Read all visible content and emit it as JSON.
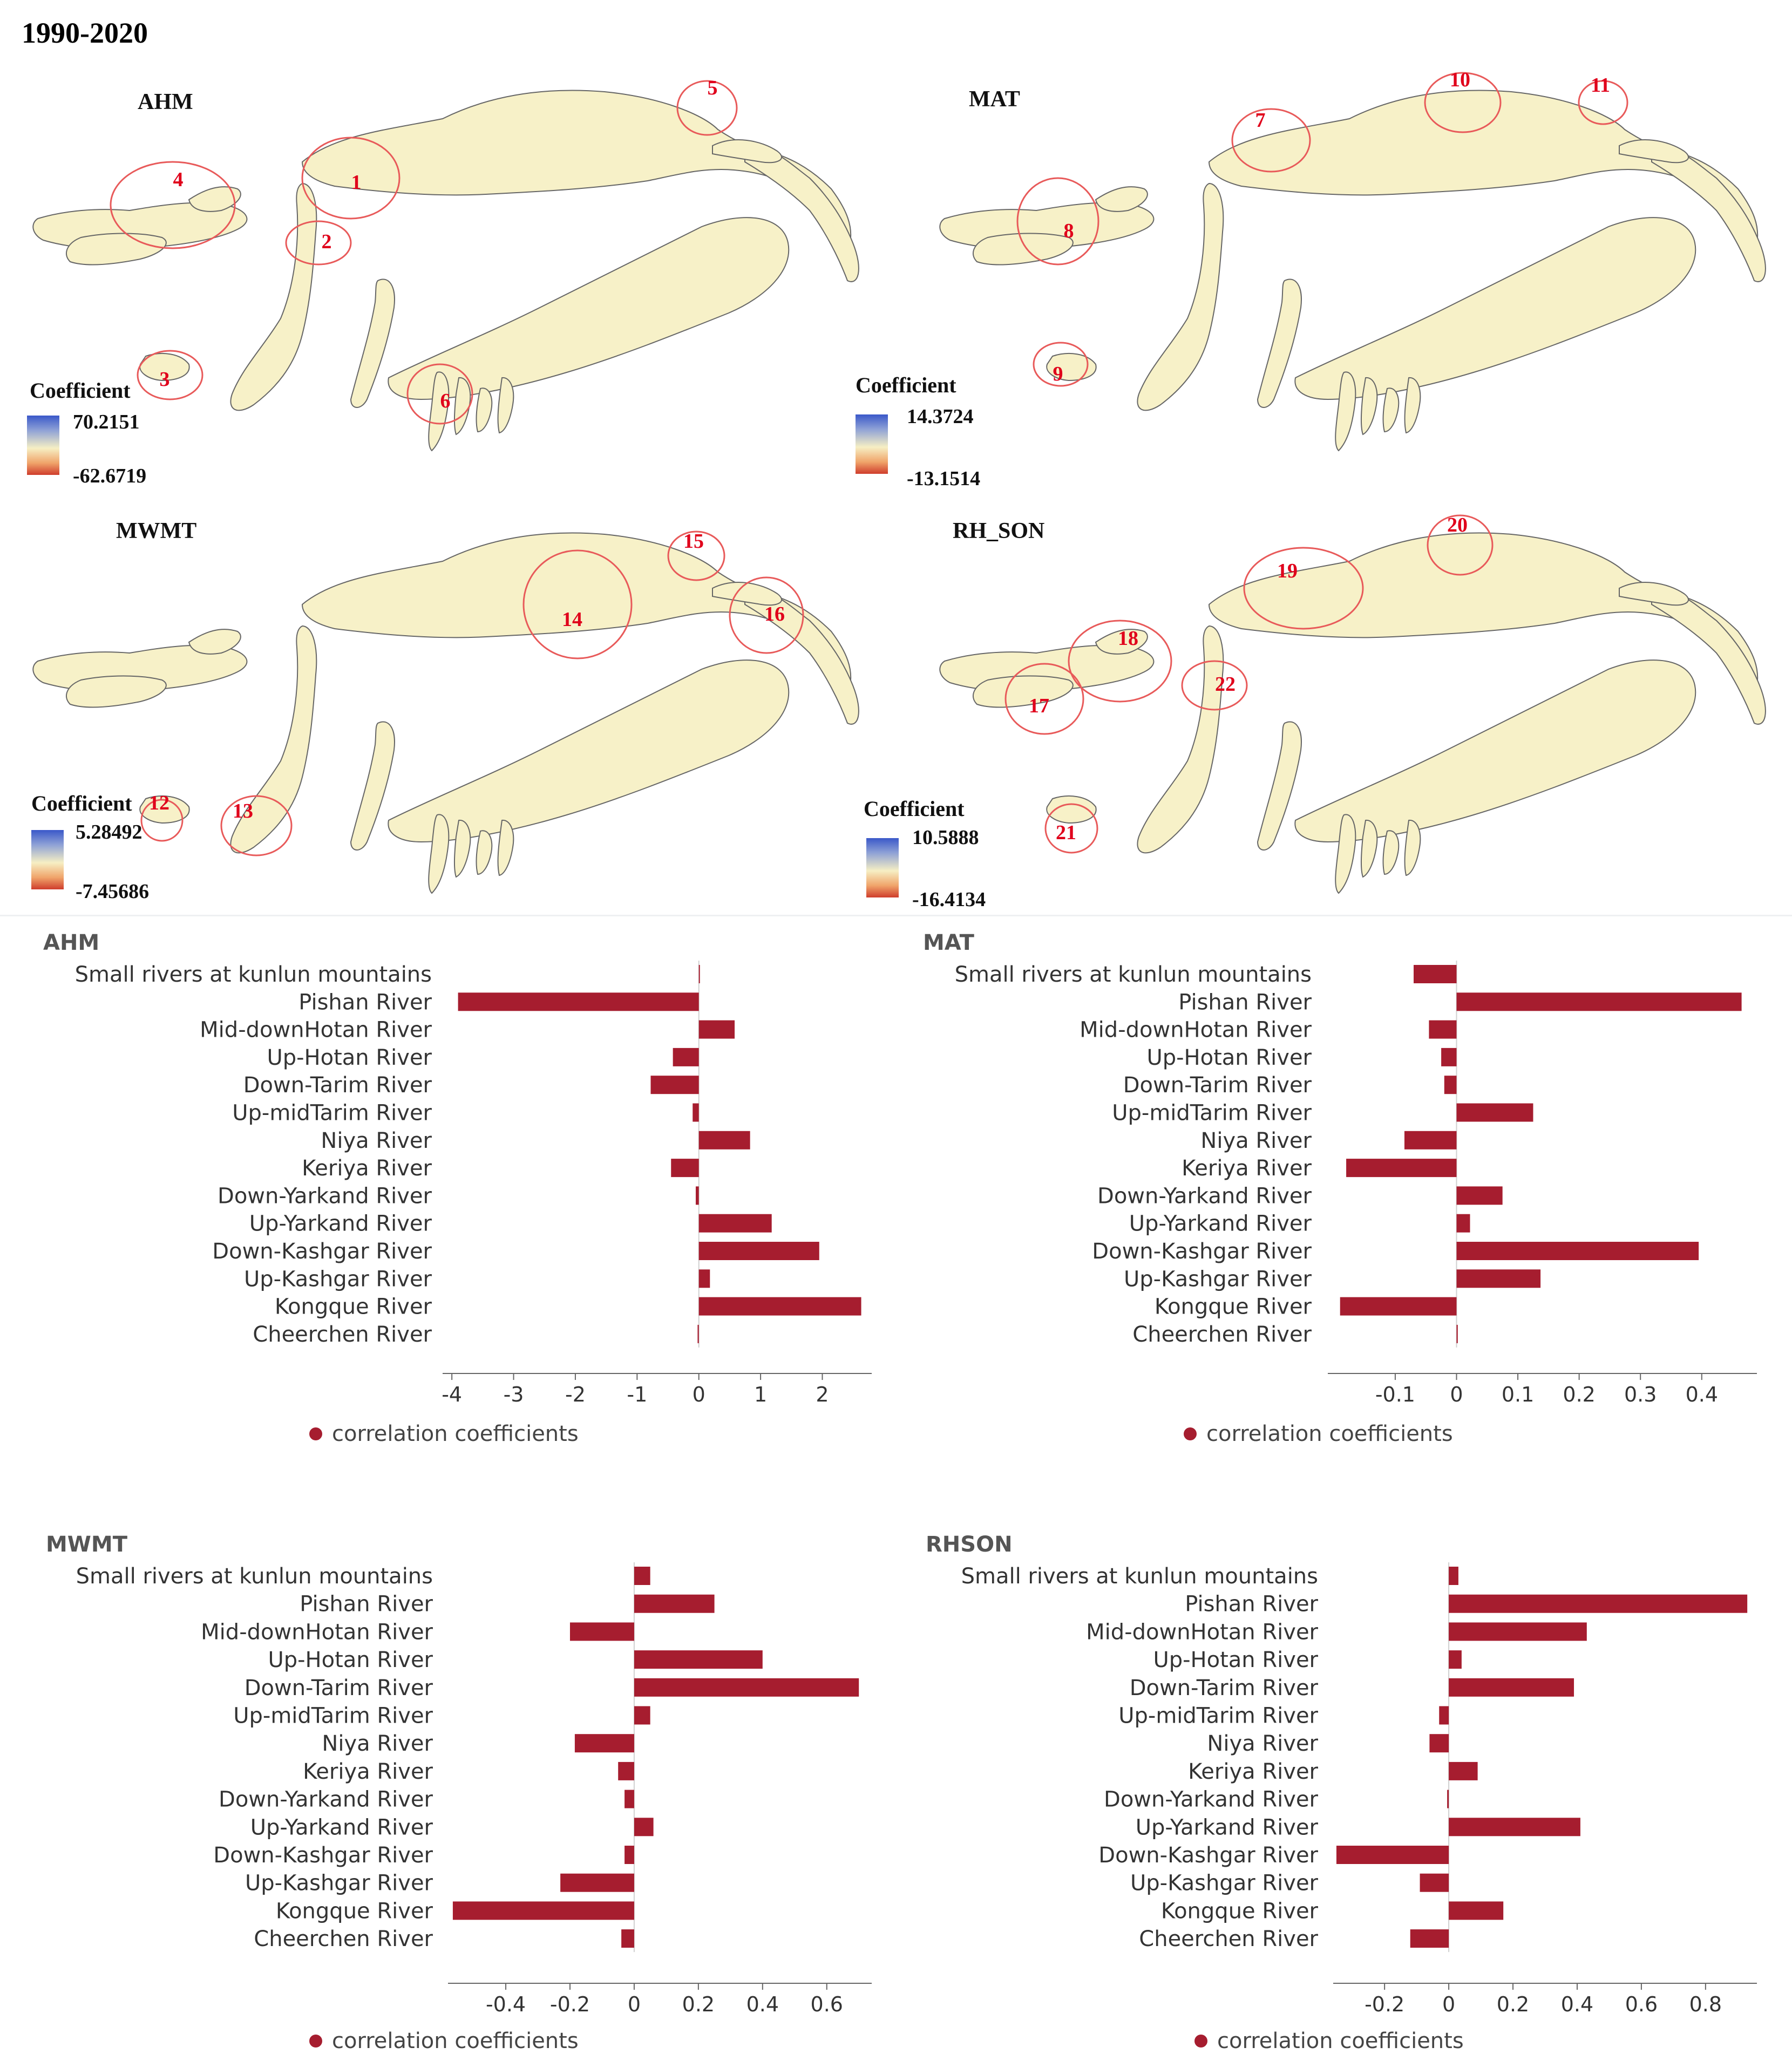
{
  "figure": {
    "title": "1990-2020"
  },
  "maps": [
    {
      "name": "AHM",
      "legend_title": "Coefficient",
      "legend_max": "70.2151",
      "legend_min": "-62.6719",
      "markers": [
        "1",
        "2",
        "3",
        "4",
        "5",
        "6"
      ]
    },
    {
      "name": "MAT",
      "legend_title": "Coefficient",
      "legend_max": "14.3724",
      "legend_min": "-13.1514",
      "markers": [
        "7",
        "8",
        "9",
        "10",
        "11"
      ]
    },
    {
      "name": "MWMT",
      "legend_title": "Coefficient",
      "legend_max": "5.28492",
      "legend_min": "-7.45686",
      "markers": [
        "12",
        "13",
        "14",
        "15",
        "16"
      ]
    },
    {
      "name": "RH_SON",
      "legend_title": "Coefficient",
      "legend_max": "10.5888",
      "legend_min": "-16.4134",
      "markers": [
        "17",
        "18",
        "19",
        "20",
        "21",
        "22"
      ]
    }
  ],
  "chart_data": [
    {
      "type": "bar",
      "orientation": "horizontal",
      "title": "AHM",
      "categories": [
        "Small rivers at kunlun mountains",
        "Pishan River",
        "Mid-downHotan River",
        "Up-Hotan River",
        "Down-Tarim River",
        "Up-midTarim River",
        "Niya River",
        "Keriya River",
        "Down-Yarkand River",
        "Up-Yarkand River",
        "Down-Kashgar River",
        "Up-Kashgar River",
        "Kongque River",
        "Cheerchen River"
      ],
      "values": [
        0,
        -3.9,
        0.58,
        -0.42,
        -0.78,
        -0.1,
        0.83,
        -0.45,
        -0.05,
        1.18,
        1.95,
        0.18,
        2.63,
        -0.02
      ],
      "xlim": [
        -4.15,
        2.8
      ],
      "ticks": [
        -4,
        -3,
        -2,
        -1,
        0,
        1,
        2
      ],
      "tick_labels": [
        "-4",
        "-3",
        "-2",
        "-1",
        "0",
        "1",
        "2"
      ],
      "legend": "correlation coefficients",
      "color": "#a61d2f"
    },
    {
      "type": "bar",
      "orientation": "horizontal",
      "title": "MAT",
      "categories": [
        "Small rivers at kunlun mountains",
        "Pishan River",
        "Mid-downHotan River",
        "Up-Hotan River",
        "Down-Tarim River",
        "Up-midTarim River",
        "Niya River",
        "Keriya River",
        "Down-Yarkand River",
        "Up-Yarkand River",
        "Down-Kashgar River",
        "Up-Kashgar River",
        "Kongque River",
        "Cheerchen River"
      ],
      "values": [
        -0.07,
        0.465,
        -0.045,
        -0.025,
        -0.02,
        0.125,
        -0.085,
        -0.18,
        0.075,
        0.022,
        0.395,
        0.137,
        -0.19,
        0.002
      ],
      "xlim": [
        -0.21,
        0.49
      ],
      "ticks": [
        -0.1,
        0,
        0.1,
        0.2,
        0.3,
        0.4
      ],
      "tick_labels": [
        "-0.1",
        "0",
        "0.1",
        "0.2",
        "0.3",
        "0.4"
      ],
      "legend": "correlation coefficients",
      "color": "#a61d2f"
    },
    {
      "type": "bar",
      "orientation": "horizontal",
      "title": "MWMT",
      "categories": [
        "Small rivers at kunlun mountains",
        "Pishan River",
        "Mid-downHotan River",
        "Up-Hotan River",
        "Down-Tarim River",
        "Up-midTarim River",
        "Niya River",
        "Keriya River",
        "Down-Yarkand River",
        "Up-Yarkand River",
        "Down-Kashgar River",
        "Up-Kashgar River",
        "Kongque River",
        "Cheerchen River"
      ],
      "values": [
        0.05,
        0.25,
        -0.2,
        0.4,
        0.7,
        0.05,
        -0.185,
        -0.05,
        -0.03,
        0.06,
        -0.03,
        -0.23,
        -0.565,
        -0.04
      ],
      "xlim": [
        -0.58,
        0.74
      ],
      "ticks": [
        -0.4,
        -0.2,
        0,
        0.2,
        0.4,
        0.6
      ],
      "tick_labels": [
        "-0.4",
        "-0.2",
        "0",
        "0.2",
        "0.4",
        "0.6"
      ],
      "legend": "correlation coefficients",
      "color": "#a61d2f"
    },
    {
      "type": "bar",
      "orientation": "horizontal",
      "title": "RHSON",
      "categories": [
        "Small rivers at kunlun mountains",
        "Pishan River",
        "Mid-downHotan River",
        "Up-Hotan River",
        "Down-Tarim River",
        "Up-midTarim River",
        "Niya River",
        "Keriya River",
        "Down-Yarkand River",
        "Up-Yarkand River",
        "Down-Kashgar River",
        "Up-Kashgar River",
        "Kongque River",
        "Cheerchen River"
      ],
      "values": [
        0.03,
        0.93,
        0.43,
        0.04,
        0.39,
        -0.03,
        -0.06,
        0.09,
        -0.005,
        0.41,
        -0.35,
        -0.09,
        0.17,
        -0.12
      ],
      "xlim": [
        -0.36,
        0.96
      ],
      "ticks": [
        -0.2,
        0,
        0.2,
        0.4,
        0.6,
        0.8
      ],
      "tick_labels": [
        "-0.2",
        "0",
        "0.2",
        "0.4",
        "0.6",
        "0.8"
      ],
      "legend": "correlation coefficients",
      "color": "#a61d2f"
    }
  ]
}
